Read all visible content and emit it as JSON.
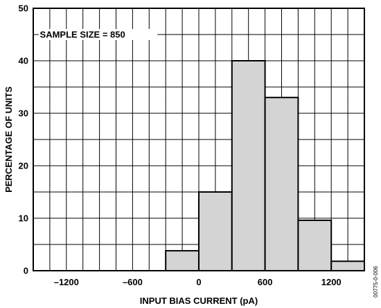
{
  "chart_data": {
    "type": "bar",
    "subtype": "histogram",
    "xlabel": "INPUT BIAS CURRENT (pA)",
    "ylabel": "PERCENTAGE OF UNITS",
    "annotation": "SAMPLE SIZE = 850",
    "figure_id": "00775-0-006",
    "xlim": [
      -1500,
      1500
    ],
    "ylim": [
      0,
      50
    ],
    "x_ticks": [
      -1200,
      -600,
      0,
      600,
      1200
    ],
    "x_tick_labels": [
      "–1200",
      "–600",
      "0",
      "600",
      "1200"
    ],
    "y_ticks": [
      0,
      10,
      20,
      30,
      40,
      50
    ],
    "y_tick_labels": [
      "0",
      "10",
      "20",
      "30",
      "40",
      "50"
    ],
    "grid": true,
    "bins": [
      {
        "x0": -300,
        "x1": 0,
        "value": 3.8
      },
      {
        "x0": 0,
        "x1": 300,
        "value": 15
      },
      {
        "x0": 300,
        "x1": 600,
        "value": 40
      },
      {
        "x0": 600,
        "x1": 900,
        "value": 33
      },
      {
        "x0": 900,
        "x1": 1200,
        "value": 9.6
      },
      {
        "x0": 1200,
        "x1": 1500,
        "value": 1.8
      }
    ],
    "bar_fill": "#d4d4d4"
  }
}
